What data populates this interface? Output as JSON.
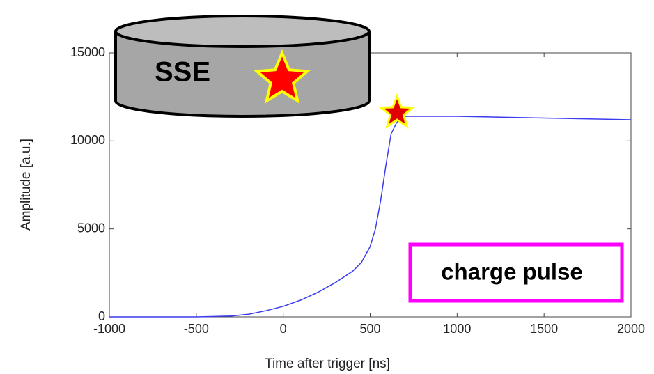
{
  "chart_data": {
    "type": "line",
    "x_label": "Time after trigger [ns]",
    "y_label": "Amplitude [a.u.]",
    "x": [
      -1000,
      -700,
      -500,
      -300,
      -200,
      -100,
      0,
      100,
      200,
      300,
      400,
      450,
      500,
      530,
      560,
      590,
      620,
      650,
      680,
      800,
      1000,
      1500,
      2000
    ],
    "values": [
      0,
      0,
      0,
      50,
      150,
      350,
      600,
      950,
      1400,
      1950,
      2600,
      3100,
      4000,
      5000,
      6600,
      8600,
      10400,
      11000,
      11400,
      11400,
      11400,
      11300,
      11200
    ],
    "color": "#3b3bf0",
    "xlim": [
      -1000,
      2000
    ],
    "xticks": [
      -1000,
      -500,
      0,
      500,
      1000,
      1500,
      2000
    ],
    "ylim": [
      0,
      15000
    ],
    "yticks": [
      0,
      5000,
      10000,
      15000
    ],
    "grid": false,
    "annotations": [
      "SSE",
      "charge pulse"
    ]
  }
}
